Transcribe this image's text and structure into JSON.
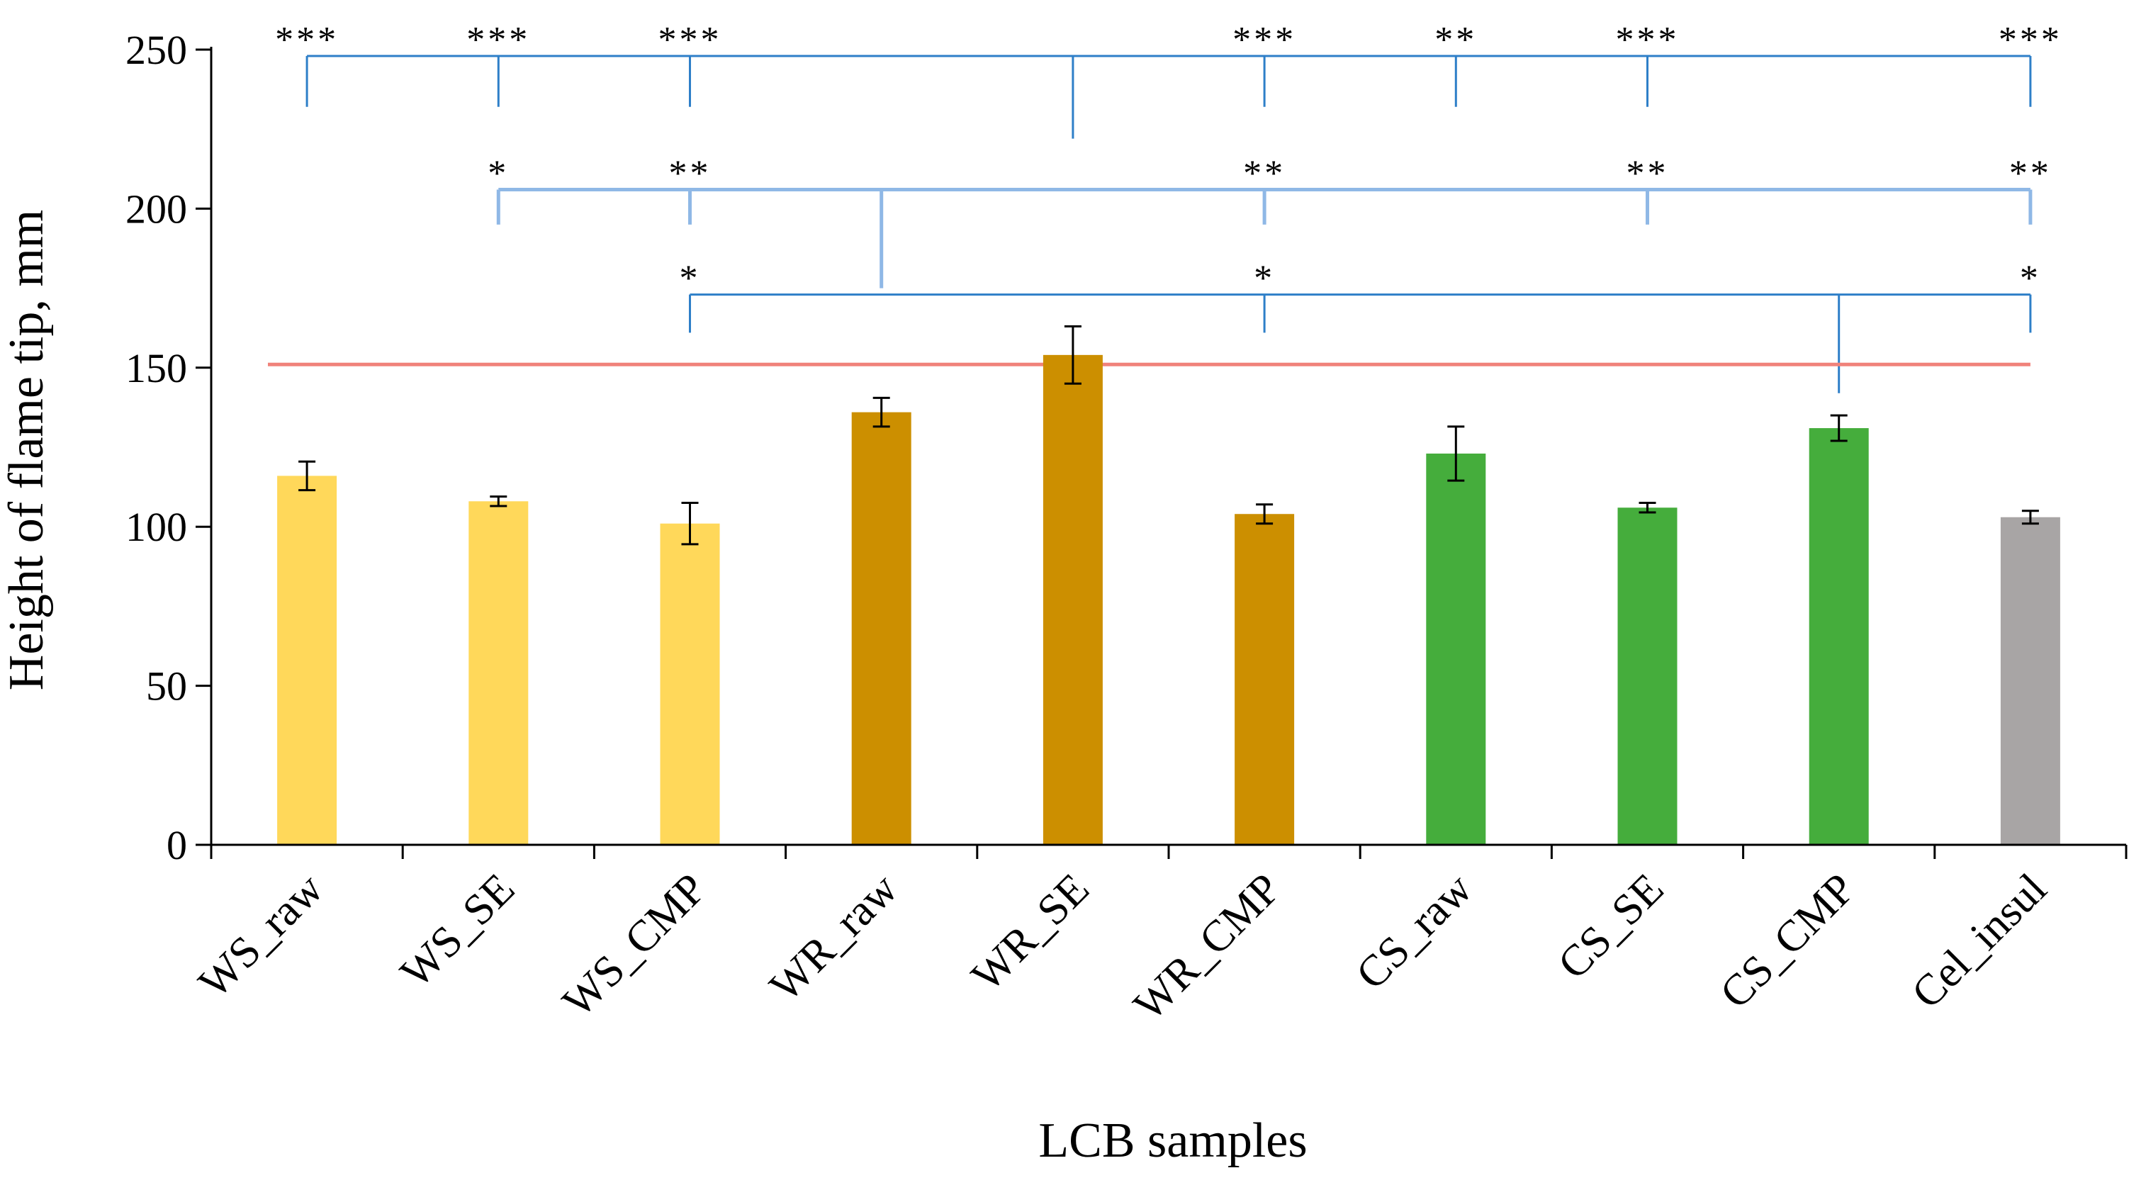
{
  "chart_data": {
    "type": "bar",
    "xlabel": "LCB samples",
    "ylabel": "Height of flame tip, mm",
    "ylim": [
      0,
      250
    ],
    "yticks": [
      0,
      50,
      100,
      150,
      200,
      250
    ],
    "grid": false,
    "categories": [
      "WS_raw",
      "WS_SE",
      "WS_CMP",
      "WR_raw",
      "WR_SE",
      "WR_CMP",
      "CS_raw",
      "CS_SE",
      "CS_CMP",
      "Cel_insul"
    ],
    "values": [
      116,
      108,
      101,
      136,
      154,
      104,
      123,
      106,
      131,
      103
    ],
    "errors": [
      4.5,
      1.5,
      6.5,
      4.5,
      9,
      3,
      8.5,
      1.5,
      4,
      2
    ],
    "colors": [
      "#ffd85a",
      "#ffd85a",
      "#ffd85a",
      "#cc8f00",
      "#cc8f00",
      "#cc8f00",
      "#45ad3c",
      "#45ad3c",
      "#45ad3c",
      "#a8a5a5"
    ],
    "reference_line": {
      "value": 151,
      "color": "#f0827a"
    },
    "significance": [
      {
        "hub_category": 4,
        "hub_y": 248,
        "hub_drop_to": 222,
        "color": "#2e7fc8",
        "drop_to": 232,
        "targets": [
          {
            "category": 0,
            "stars": "***"
          },
          {
            "category": 1,
            "stars": "***"
          },
          {
            "category": 2,
            "stars": "***"
          },
          {
            "category": 5,
            "stars": "***"
          },
          {
            "category": 6,
            "stars": "**"
          },
          {
            "category": 7,
            "stars": "***"
          },
          {
            "category": 9,
            "stars": "***"
          }
        ]
      },
      {
        "hub_category": 3,
        "hub_y": 206,
        "hub_drop_to": 175,
        "color": "#8fb8e6",
        "drop_to": 195,
        "targets": [
          {
            "category": 1,
            "stars": "*"
          },
          {
            "category": 2,
            "stars": "**"
          },
          {
            "category": 5,
            "stars": "**"
          },
          {
            "category": 7,
            "stars": "**"
          },
          {
            "category": 9,
            "stars": "**"
          }
        ]
      },
      {
        "hub_category": 8,
        "hub_y": 173,
        "hub_drop_to": 142,
        "color": "#2e7fc8",
        "drop_to": 161,
        "targets": [
          {
            "category": 2,
            "stars": "*"
          },
          {
            "category": 5,
            "stars": "*"
          },
          {
            "category": 9,
            "stars": "*"
          }
        ]
      }
    ]
  }
}
